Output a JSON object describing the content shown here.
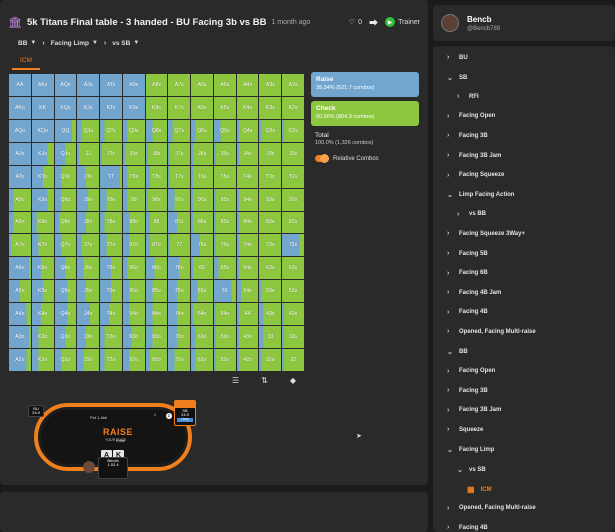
{
  "header": {
    "title": "5k Titans Final table - 3 handed - BU Facing 3b vs BB",
    "time": "1 month ago",
    "likes": "0",
    "trainer_label": "Trainer"
  },
  "filters": [
    {
      "label": "BB",
      "kind": "dropdown"
    },
    {
      "label": "Facing Limp",
      "kind": "dropdown"
    },
    {
      "label": "vs SB",
      "kind": "dropdown"
    }
  ],
  "active_tab": "ICM",
  "colors": {
    "raise": "#73a6cf",
    "check": "#8dc63f",
    "accent": "#f07f1e"
  },
  "matrix": {
    "rows": [
      {
        "cells": [
          "AA",
          "AKs",
          "AQs",
          "AJs",
          "ATs",
          "A9s",
          "A8s",
          "A7s",
          "A6s",
          "A5s",
          "A4s",
          "A3s",
          "A2s"
        ],
        "raise": [
          1,
          1,
          1,
          1,
          1,
          1,
          0,
          0,
          0,
          0,
          0,
          0,
          0
        ]
      },
      {
        "cells": [
          "AKo",
          "KK",
          "KQs",
          "KJs",
          "KTs",
          "K9s",
          "K8s",
          "K7s",
          "K6s",
          "K5s",
          "K4s",
          "K3s",
          "K2s"
        ],
        "raise": [
          1,
          1,
          1,
          1,
          1,
          1,
          0,
          0,
          0,
          0,
          0,
          0,
          0
        ]
      },
      {
        "cells": [
          "AQo",
          "KQo",
          "QQ",
          "QJs",
          "QTs",
          "Q9s",
          "Q8s",
          "Q7s",
          "Q6s",
          "Q5s",
          "Q4s",
          "Q3s",
          "Q2s"
        ],
        "raise": [
          1,
          1,
          0.8,
          0.2,
          0.2,
          0.2,
          0.3,
          0.2,
          0.2,
          0.3,
          0.1,
          0.1,
          0.1
        ]
      },
      {
        "cells": [
          "AJo",
          "KJo",
          "QJo",
          "JJ",
          "JTs",
          "J9s",
          "J8s",
          "J7s",
          "J6s",
          "J5s",
          "J4s",
          "J3s",
          "J2s"
        ],
        "raise": [
          1,
          0.7,
          0.5,
          0.1,
          0.1,
          0.1,
          0.1,
          0.1,
          0.1,
          0.1,
          0.1,
          0,
          0
        ]
      },
      {
        "cells": [
          "ATo",
          "KTo",
          "QTo",
          "JTo",
          "TT",
          "T9s",
          "T8s",
          "T7s",
          "T6s",
          "T5s",
          "T4s",
          "T3s",
          "T2s"
        ],
        "raise": [
          1,
          0.5,
          0.3,
          0.4,
          0.9,
          0.2,
          0.2,
          0.1,
          0.1,
          0,
          0,
          0,
          0
        ]
      },
      {
        "cells": [
          "A9o",
          "K9o",
          "Q9o",
          "J9o",
          "T9o",
          "99",
          "98s",
          "97s",
          "96s",
          "95s",
          "94s",
          "93s",
          "92s"
        ],
        "raise": [
          0.2,
          0.7,
          0.3,
          0.5,
          0.3,
          0.2,
          0.1,
          0.3,
          0.1,
          0.1,
          0.1,
          0,
          0
        ]
      },
      {
        "cells": [
          "A8o",
          "K8o",
          "Q8o",
          "J8o",
          "T8o",
          "98o",
          "88",
          "87s",
          "86s",
          "85s",
          "84s",
          "83s",
          "82s"
        ],
        "raise": [
          0.2,
          0.2,
          0.2,
          0.4,
          0.2,
          0.3,
          0.2,
          0.4,
          0.1,
          0.1,
          0.1,
          0,
          0
        ]
      },
      {
        "cells": [
          "A7o",
          "K7o",
          "Q7o",
          "J7o",
          "T7o",
          "97o",
          "87o",
          "77",
          "76s",
          "75s",
          "74s",
          "73s",
          "72s"
        ],
        "raise": [
          0.1,
          0.3,
          0.3,
          0.2,
          0.3,
          0.3,
          0.2,
          0.1,
          0.4,
          0.1,
          0.1,
          0,
          0.8
        ]
      },
      {
        "cells": [
          "A6o",
          "K6o",
          "Q6o",
          "J6o",
          "T6o",
          "96o",
          "86o",
          "76o",
          "66",
          "65s",
          "64s",
          "63s",
          "62s"
        ],
        "raise": [
          0.9,
          0.4,
          0.5,
          0.3,
          0.5,
          0.2,
          0.4,
          0.5,
          0.1,
          0.2,
          0.1,
          0,
          0
        ]
      },
      {
        "cells": [
          "A5o",
          "K5o",
          "Q5o",
          "J5o",
          "T5o",
          "95o",
          "85o",
          "75o",
          "65o",
          "55",
          "54s",
          "53s",
          "52s"
        ],
        "raise": [
          0.5,
          0.5,
          0.6,
          0.4,
          0.5,
          0.3,
          0.3,
          0.4,
          0.3,
          0.8,
          0.2,
          0.1,
          0
        ]
      },
      {
        "cells": [
          "A4o",
          "K4o",
          "Q4o",
          "J4o",
          "T4o",
          "94o",
          "84o",
          "74o",
          "64o",
          "54o",
          "44",
          "43s",
          "42s"
        ],
        "raise": [
          0.8,
          0.4,
          0.6,
          0.6,
          0.4,
          0.3,
          0.3,
          0.4,
          0.1,
          0.1,
          0.1,
          0.2,
          0.1
        ]
      },
      {
        "cells": [
          "A3o",
          "K3o",
          "Q3o",
          "J3o",
          "T3o",
          "93o",
          "83o",
          "73o",
          "63o",
          "53o",
          "43o",
          "33",
          "32s"
        ],
        "raise": [
          0.9,
          0.3,
          0.5,
          0.4,
          0.2,
          0.4,
          0.3,
          0.4,
          0.2,
          0.1,
          0.1,
          0.2,
          0.1
        ]
      },
      {
        "cells": [
          "A2o",
          "K2o",
          "Q2o",
          "J2o",
          "T2o",
          "92o",
          "82o",
          "72o",
          "62o",
          "52o",
          "42o",
          "32o",
          "22"
        ],
        "raise": [
          0.8,
          0.3,
          0.3,
          0.3,
          0.2,
          0.3,
          0.2,
          0.3,
          0.2,
          0.1,
          0.1,
          0.1,
          0.1
        ]
      }
    ]
  },
  "actions": {
    "raise": {
      "name": "Raise",
      "pct": "39.34% (521.7 combos)"
    },
    "check": {
      "name": "Check",
      "pct": "60.66% (804.3 combos)"
    },
    "total": {
      "name": "Total",
      "pct": "100.0% (1,326 combos)"
    },
    "relative_label": "Relative Combos"
  },
  "table": {
    "logo": "RAISE",
    "logo_sub": "YOUR EDGE",
    "pot": "Pot 1.4bb",
    "bu_seat": {
      "name": "BU",
      "stack": "24.9"
    },
    "sb_seat": {
      "name": "SB",
      "stack": "24.9",
      "tag": "Limp"
    },
    "bb_seat": {
      "name": "Bencb",
      "stack": "1.02.4"
    },
    "sb_chips": "1",
    "bb_chips": "0.4bb",
    "hole_cards": [
      "A",
      "K"
    ],
    "dealer": "D"
  },
  "profile": {
    "name": "Bencb",
    "handle": "@Bencb789"
  },
  "tree": [
    {
      "label": "BU",
      "chevron": "right",
      "indent": 0
    },
    {
      "label": "SB",
      "chevron": "down",
      "indent": 0
    },
    {
      "label": "RFI",
      "chevron": "right",
      "indent": 1
    },
    {
      "label": "Facing Open",
      "chevron": "right",
      "indent": 0
    },
    {
      "label": "Facing 3B",
      "chevron": "right",
      "indent": 0
    },
    {
      "label": "Facing 3B Jam",
      "chevron": "right",
      "indent": 0
    },
    {
      "label": "Facing Squeeze",
      "chevron": "right",
      "indent": 0
    },
    {
      "label": "Limp Facing Action",
      "chevron": "down",
      "indent": 0
    },
    {
      "label": "vs BB",
      "chevron": "right",
      "indent": 1
    },
    {
      "label": "Facing Squeeze 3Way+",
      "chevron": "right",
      "indent": 0
    },
    {
      "label": "Facing 5B",
      "chevron": "right",
      "indent": 0
    },
    {
      "label": "Facing 6B",
      "chevron": "right",
      "indent": 0
    },
    {
      "label": "Facing 4B Jam",
      "chevron": "right",
      "indent": 0
    },
    {
      "label": "Facing 4B",
      "chevron": "right",
      "indent": 0
    },
    {
      "label": "Opened, Facing Multi-raise",
      "chevron": "right",
      "indent": 0
    },
    {
      "label": "BB",
      "chevron": "down",
      "indent": 0
    },
    {
      "label": "Facing Open",
      "chevron": "right",
      "indent": 0
    },
    {
      "label": "Facing 3B",
      "chevron": "right",
      "indent": 0
    },
    {
      "label": "Facing 3B Jam",
      "chevron": "right",
      "indent": 0
    },
    {
      "label": "Squeeze",
      "chevron": "right",
      "indent": 0
    },
    {
      "label": "Facing Limp",
      "chevron": "down",
      "indent": 0
    },
    {
      "label": "vs SB",
      "chevron": "down",
      "indent": 1
    },
    {
      "label": "ICM",
      "chevron": "grid",
      "indent": 2,
      "active": true
    },
    {
      "label": "Opened, Facing Multi-raise",
      "chevron": "right",
      "indent": 0
    },
    {
      "label": "Facing 4B",
      "chevron": "right",
      "indent": 0
    }
  ]
}
